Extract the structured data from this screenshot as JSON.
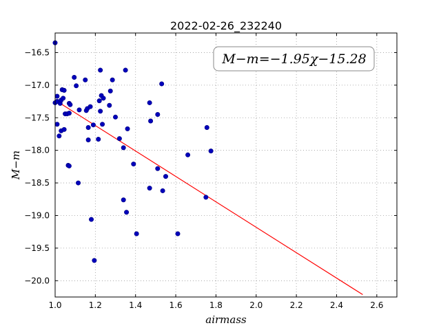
{
  "chart_data": {
    "type": "scatter",
    "title": "2022-02-26_232240",
    "xlabel": "airmass",
    "ylabel": "M−m",
    "xlim": [
      1.0,
      2.7
    ],
    "ylim": [
      -20.25,
      -16.2
    ],
    "y_inverted": true,
    "grid": true,
    "x_ticks": [
      "1.0",
      "1.2",
      "1.4",
      "1.6",
      "1.8",
      "2.0",
      "2.2",
      "2.4",
      "2.6"
    ],
    "y_ticks": [
      "−16.5",
      "−17.0",
      "−17.5",
      "−18.0",
      "−18.5",
      "−19.0",
      "−19.5",
      "−20.0"
    ],
    "annotation": "M−m=−1.95χ−15.28",
    "fit": {
      "slope": -1.95,
      "intercept": -15.28,
      "x_range": [
        1.0,
        2.53
      ],
      "color": "#ff0000"
    },
    "marker_color": "#0000bb",
    "points": [
      [
        1.0,
        -16.35
      ],
      [
        1.01,
        -17.17
      ],
      [
        1.0,
        -17.27
      ],
      [
        1.01,
        -17.25
      ],
      [
        1.01,
        -17.6
      ],
      [
        1.025,
        -17.28
      ],
      [
        1.03,
        -17.23
      ],
      [
        1.035,
        -17.07
      ],
      [
        1.045,
        -17.08
      ],
      [
        1.04,
        -17.2
      ],
      [
        1.02,
        -17.78
      ],
      [
        1.03,
        -17.7
      ],
      [
        1.045,
        -17.68
      ],
      [
        1.05,
        -17.44
      ],
      [
        1.06,
        -17.44
      ],
      [
        1.07,
        -17.28
      ],
      [
        1.075,
        -17.3
      ],
      [
        1.07,
        -17.43
      ],
      [
        1.065,
        -18.23
      ],
      [
        1.07,
        -18.24
      ],
      [
        1.095,
        -16.88
      ],
      [
        1.105,
        -17.01
      ],
      [
        1.12,
        -17.38
      ],
      [
        1.115,
        -18.5
      ],
      [
        1.15,
        -16.92
      ],
      [
        1.155,
        -17.39
      ],
      [
        1.16,
        -17.36
      ],
      [
        1.165,
        -17.65
      ],
      [
        1.165,
        -17.84
      ],
      [
        1.175,
        -17.33
      ],
      [
        1.18,
        -19.06
      ],
      [
        1.19,
        -17.61
      ],
      [
        1.195,
        -19.69
      ],
      [
        1.215,
        -17.83
      ],
      [
        1.22,
        -17.24
      ],
      [
        1.225,
        -16.77
      ],
      [
        1.225,
        -17.4
      ],
      [
        1.23,
        -17.16
      ],
      [
        1.24,
        -17.2
      ],
      [
        1.235,
        -17.6
      ],
      [
        1.27,
        -17.31
      ],
      [
        1.275,
        -17.09
      ],
      [
        1.285,
        -16.92
      ],
      [
        1.3,
        -17.49
      ],
      [
        1.32,
        -17.82
      ],
      [
        1.34,
        -17.96
      ],
      [
        1.34,
        -18.76
      ],
      [
        1.35,
        -16.77
      ],
      [
        1.355,
        -18.95
      ],
      [
        1.36,
        -17.67
      ],
      [
        1.39,
        -18.21
      ],
      [
        1.405,
        -19.28
      ],
      [
        1.47,
        -17.27
      ],
      [
        1.475,
        -17.55
      ],
      [
        1.47,
        -18.58
      ],
      [
        1.51,
        -17.45
      ],
      [
        1.51,
        -18.28
      ],
      [
        1.53,
        -16.98
      ],
      [
        1.535,
        -18.62
      ],
      [
        1.55,
        -18.4
      ],
      [
        1.61,
        -19.28
      ],
      [
        1.66,
        -18.07
      ],
      [
        1.75,
        -18.72
      ],
      [
        1.755,
        -17.65
      ],
      [
        1.775,
        -18.01
      ]
    ]
  }
}
